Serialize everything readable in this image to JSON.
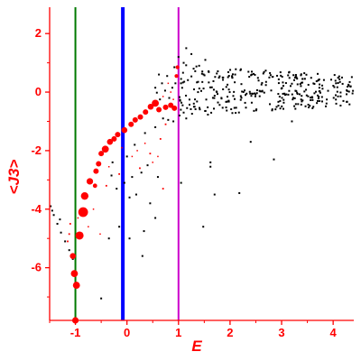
{
  "chart_data": {
    "type": "scatter",
    "xlabel": "E",
    "ylabel": "<J3>",
    "xlim": [
      -1.5,
      4.4
    ],
    "ylim": [
      -7.8,
      2.9
    ],
    "x_ticks": [
      -1,
      0,
      1,
      2,
      3,
      4
    ],
    "y_ticks": [
      2,
      0,
      -2,
      -4,
      -6
    ],
    "grid": false,
    "axis_color": "#ff0000",
    "vertical_lines": [
      {
        "x": -1.0,
        "color": "#007a00"
      },
      {
        "x": -0.08,
        "color": "#0000ff"
      },
      {
        "x": 1.0,
        "color": "#cc00cc"
      }
    ],
    "series": [
      {
        "color": "#ff0000",
        "points": [
          [
            -1.0,
            -7.8,
            1.2
          ],
          [
            -0.98,
            -6.6,
            1.3
          ],
          [
            -1.02,
            -6.2,
            1.3
          ],
          [
            -1.05,
            -5.6,
            1.1
          ],
          [
            -0.92,
            -4.9,
            1.5
          ],
          [
            -1.15,
            -5.1,
            0.6
          ],
          [
            -1.12,
            -4.85,
            0.6
          ],
          [
            -0.85,
            -4.1,
            1.8
          ],
          [
            -1.1,
            -4.5,
            0.6
          ],
          [
            -0.82,
            -3.55,
            1.4
          ],
          [
            -0.72,
            -3.05,
            1.2
          ],
          [
            -0.62,
            -3.2,
            0.8
          ],
          [
            -0.6,
            -2.7,
            1.0
          ],
          [
            -0.55,
            -2.45,
            1.0
          ],
          [
            -0.5,
            -2.1,
            1.0
          ],
          [
            -0.42,
            -1.95,
            1.3
          ],
          [
            -0.33,
            -1.7,
            1.1
          ],
          [
            -0.25,
            -1.6,
            1.0
          ],
          [
            -0.18,
            -1.45,
            1.0
          ],
          [
            -0.05,
            -1.3,
            1.1
          ],
          [
            0.08,
            -1.1,
            1.0
          ],
          [
            0.16,
            -0.95,
            1.0
          ],
          [
            0.26,
            -0.85,
            1.0
          ],
          [
            0.36,
            -0.68,
            1.0
          ],
          [
            0.46,
            -0.5,
            1.1
          ],
          [
            0.55,
            -0.38,
            1.3
          ],
          [
            0.62,
            -0.6,
            1.0
          ],
          [
            0.75,
            -0.52,
            1.0
          ],
          [
            0.85,
            -0.45,
            1.0
          ],
          [
            0.92,
            -0.55,
            1.0
          ],
          [
            0.96,
            0.55,
            0.7
          ],
          [
            0.98,
            0.85,
            0.7
          ],
          [
            -0.52,
            -4.85,
            0.5
          ],
          [
            -0.75,
            -4.6,
            0.5
          ],
          [
            -0.95,
            -4.3,
            0.5
          ],
          [
            -0.65,
            -4.0,
            0.5
          ],
          [
            -0.4,
            -3.2,
            0.6
          ],
          [
            -0.15,
            -2.8,
            0.6
          ],
          [
            -0.35,
            -2.55,
            0.5
          ],
          [
            0.25,
            -2.6,
            0.6
          ],
          [
            0.7,
            -3.3,
            0.6
          ],
          [
            0.45,
            -2.1,
            0.6
          ],
          [
            0.65,
            -1.6,
            0.6
          ],
          [
            0.75,
            -1.1,
            0.6
          ],
          [
            0.1,
            -2.2,
            0.5
          ],
          [
            0.2,
            -2.0,
            0.5
          ],
          [
            0.35,
            -1.75,
            0.5
          ],
          [
            0.5,
            -2.4,
            0.5
          ],
          [
            0.6,
            -2.2,
            0.5
          ],
          [
            -0.1,
            -1.9,
            0.5
          ],
          [
            0.85,
            0.0,
            0.5
          ],
          [
            0.8,
            0.3,
            0.5
          ],
          [
            0.7,
            -0.15,
            0.5
          ],
          [
            0.9,
            -0.25,
            0.5
          ]
        ]
      },
      {
        "color": "#000000",
        "points": [
          [
            -1.48,
            -3.9
          ],
          [
            -1.42,
            -4.2
          ],
          [
            -1.35,
            -4.5
          ],
          [
            -1.28,
            -4.8
          ],
          [
            -1.2,
            -5.1
          ],
          [
            -1.12,
            -5.4
          ],
          [
            -1.05,
            -5.7
          ],
          [
            -1.45,
            -4.05
          ],
          [
            -1.3,
            -4.35
          ],
          [
            -0.5,
            -7.05
          ],
          [
            -0.35,
            -5.0
          ],
          [
            -0.15,
            -4.6
          ],
          [
            0.05,
            -5.0
          ],
          [
            0.3,
            -5.6
          ],
          [
            0.33,
            -4.75
          ],
          [
            0.55,
            -4.3
          ],
          [
            0.45,
            -3.8
          ],
          [
            0.05,
            -3.6
          ],
          [
            -0.05,
            -3.1
          ],
          [
            -0.2,
            -3.3
          ],
          [
            0.18,
            -3.5
          ],
          [
            0.1,
            -2.9
          ],
          [
            0.28,
            -2.75
          ],
          [
            0.6,
            -2.9
          ],
          [
            0.4,
            -2.5
          ],
          [
            0.0,
            -2.2
          ],
          [
            -0.28,
            -2.4
          ],
          [
            -0.3,
            -2.85
          ],
          [
            0.15,
            -1.8
          ],
          [
            0.35,
            -1.4
          ],
          [
            0.55,
            -1.2
          ],
          [
            0.7,
            -0.9
          ],
          [
            0.8,
            -0.95
          ],
          [
            0.9,
            -1.0
          ],
          [
            1.02,
            -0.8
          ],
          [
            1.1,
            -0.7
          ],
          [
            1.15,
            -0.9
          ],
          [
            1.05,
            -3.1
          ],
          [
            1.48,
            -4.6
          ],
          [
            1.7,
            -3.5
          ],
          [
            1.62,
            -2.4
          ],
          [
            1.62,
            -2.55
          ],
          [
            2.18,
            -3.45
          ],
          [
            2.85,
            -2.3
          ],
          [
            2.4,
            -1.7
          ],
          [
            3.2,
            -1.0
          ],
          [
            3.6,
            -0.55
          ],
          [
            1.3,
            -0.5
          ],
          [
            1.1,
            1.0
          ],
          [
            1.15,
            1.5
          ],
          [
            1.25,
            1.3
          ],
          [
            1.05,
            0.45
          ],
          [
            0.92,
            0.85
          ],
          [
            0.78,
            0.55
          ],
          [
            0.68,
            0.3
          ],
          [
            0.62,
            0.6
          ],
          [
            0.55,
            0.15
          ],
          [
            1.4,
            0.9
          ],
          [
            0.58,
            -0.02
          ],
          [
            0.74,
            0.05
          ],
          [
            0.82,
            -0.2
          ],
          [
            0.64,
            -0.25
          ],
          [
            0.88,
            0.15
          ],
          [
            0.94,
            0.3
          ],
          [
            1.0,
            1.2
          ],
          [
            1.52,
            1.1
          ],
          [
            1.38,
            0.35
          ],
          [
            1.32,
            -0.25
          ],
          [
            1.08,
            -0.45
          ]
        ]
      }
    ]
  }
}
